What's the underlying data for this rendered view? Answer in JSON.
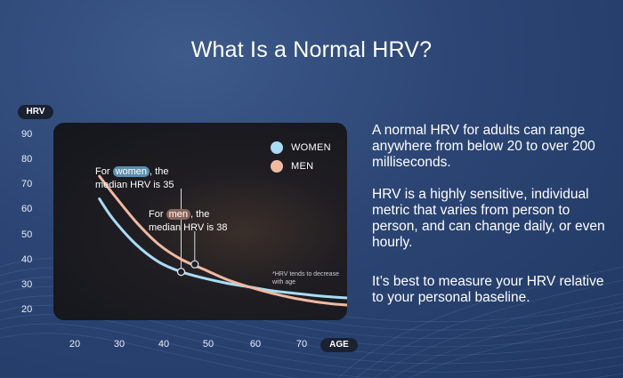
{
  "title": "What Is a Normal HRV?",
  "chart_data": {
    "type": "line",
    "ylabel": "HRV",
    "xlabel": "AGE",
    "x_ticks": [
      "20",
      "30",
      "40",
      "50",
      "60",
      "70"
    ],
    "y_ticks": [
      "90",
      "80",
      "70",
      "60",
      "50",
      "40",
      "30",
      "20"
    ],
    "xlim": [
      17,
      80
    ],
    "ylim": [
      15,
      92
    ],
    "grid": false,
    "legend_position": "top-right",
    "legend": [
      {
        "name": "WOMEN",
        "color": "#a9dcf5"
      },
      {
        "name": "MEN",
        "color": "#f0b9a2"
      }
    ],
    "series": [
      {
        "name": "WOMEN",
        "color": "#a9dcf5",
        "x": [
          17,
          20,
          25,
          30,
          35,
          40,
          45,
          50,
          55,
          60,
          65,
          70,
          75,
          80
        ],
        "y": [
          64,
          56,
          46,
          39,
          35,
          32.5,
          30.5,
          29,
          27.5,
          26.5,
          25.5,
          24.8,
          24.3,
          24
        ]
      },
      {
        "name": "MEN",
        "color": "#f0b9a2",
        "x": [
          17,
          20,
          25,
          30,
          35,
          40,
          45,
          50,
          55,
          60,
          65,
          70,
          75,
          80
        ],
        "y": [
          73,
          66,
          55,
          46,
          40,
          36,
          32,
          29,
          26.5,
          24.5,
          23,
          22,
          21.5,
          21.5
        ]
      }
    ],
    "markers": [
      {
        "series": "WOMEN",
        "x": 35,
        "y": 35
      },
      {
        "series": "MEN",
        "x": 38,
        "y": 38
      }
    ],
    "annotations": {
      "women": {
        "prefix": "For ",
        "highlight": "women",
        "suffix": ", the",
        "line2": "median HRV is 35"
      },
      "men": {
        "prefix": "For ",
        "highlight": "men",
        "suffix": ", the",
        "line2": "median HRV is 38"
      }
    },
    "footnote": "*HRV tends to decrease with age"
  },
  "paragraphs": [
    "A normal HRV for adults can range anywhere from below 20 to over 200 milliseconds.",
    "HRV is a highly sensitive, individual metric that varies from person to person, and can change daily, or even hourly.",
    "It’s best to measure your HRV relative to your personal baseline."
  ]
}
